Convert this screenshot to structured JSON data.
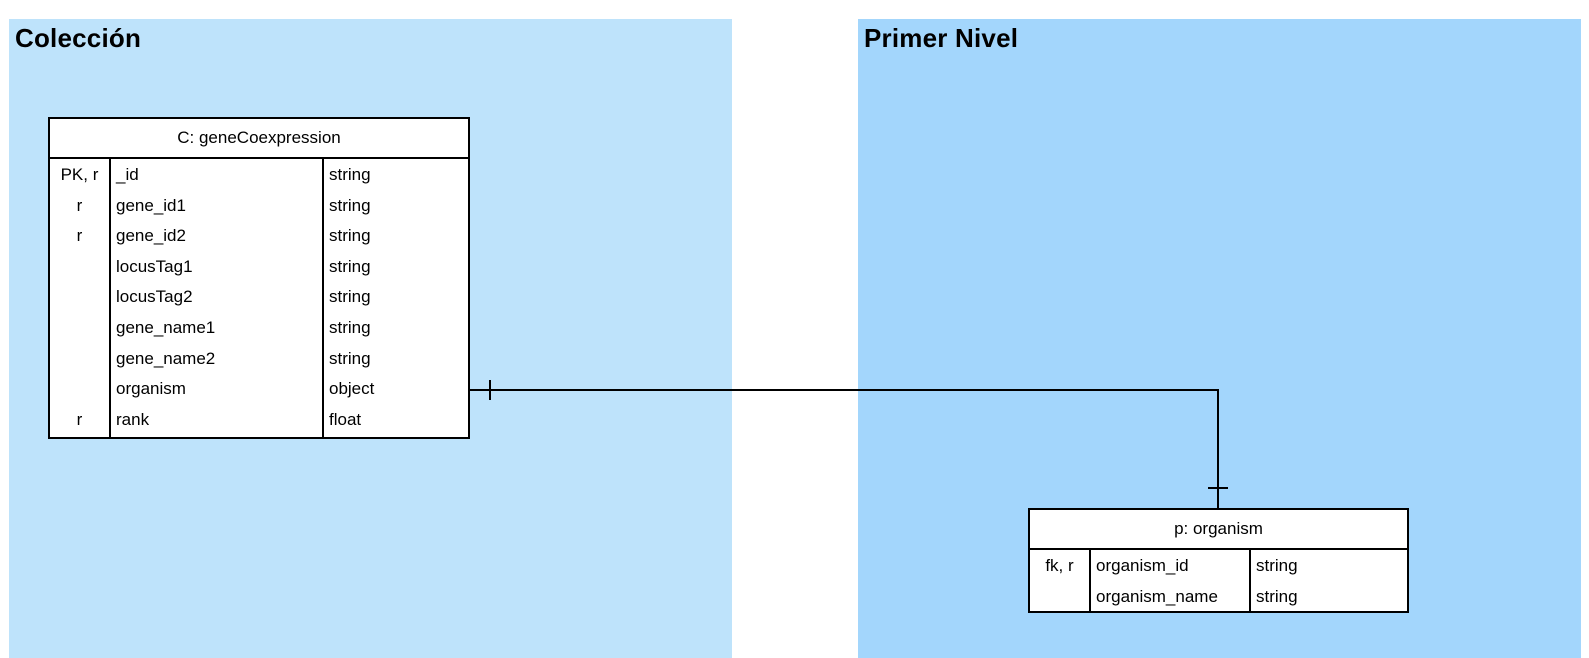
{
  "panels": {
    "left_title": "Colección",
    "right_title": "Primer Nivel",
    "left_color": "#bee3fb",
    "right_color": "#a3d6fc"
  },
  "entities": {
    "gene_coexpression": {
      "title": "C: geneCoexpression",
      "fields": [
        {
          "key": "PK, r",
          "name": "_id",
          "type": "string"
        },
        {
          "key": "r",
          "name": "gene_id1",
          "type": "string"
        },
        {
          "key": "r",
          "name": "gene_id2",
          "type": "string"
        },
        {
          "key": "",
          "name": "locusTag1",
          "type": "string"
        },
        {
          "key": "",
          "name": "locusTag2",
          "type": "string"
        },
        {
          "key": "",
          "name": "gene_name1",
          "type": "string"
        },
        {
          "key": "",
          "name": "gene_name2",
          "type": "string"
        },
        {
          "key": "",
          "name": "organism",
          "type": "object"
        },
        {
          "key": "r",
          "name": "rank",
          "type": "float"
        }
      ]
    },
    "organism": {
      "title": "p: organism",
      "fields": [
        {
          "key": "fk, r",
          "name": "organism_id",
          "type": "string"
        },
        {
          "key": "",
          "name": "organism_name",
          "type": "string"
        }
      ]
    }
  },
  "relationship": {
    "from": "gene_coexpression.organism",
    "to": "organism",
    "from_end": "one",
    "to_end": "one"
  }
}
